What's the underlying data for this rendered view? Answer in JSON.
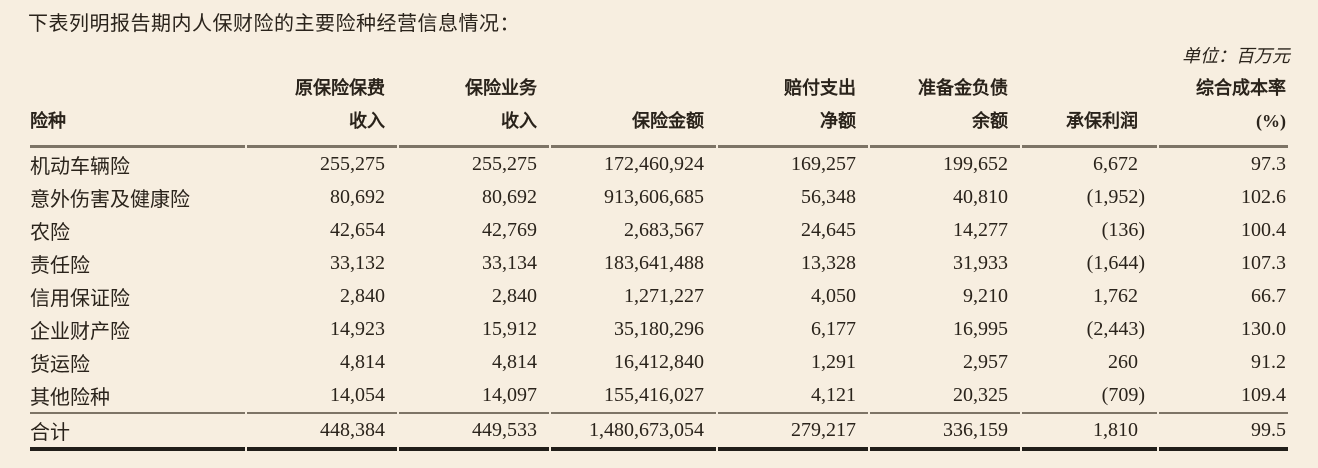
{
  "page": {
    "title": "下表列明报告期内人保财险的主要险种经营信息情况：",
    "unit_label": "单位：百万元"
  },
  "colors": {
    "background": "#f7eee0",
    "text": "#2a231b",
    "rule_light": "#7d7466",
    "rule_heavy": "#211e19"
  },
  "table": {
    "headers": [
      {
        "line1": "",
        "line2": "险种"
      },
      {
        "line1": "原保险保费",
        "line2": "收入"
      },
      {
        "line1": "保险业务",
        "line2": "收入"
      },
      {
        "line1": "",
        "line2": "保险金额"
      },
      {
        "line1": "赔付支出",
        "line2": "净额"
      },
      {
        "line1": "准备金负债",
        "line2": "余额"
      },
      {
        "line1": "",
        "line2": "承保利润"
      },
      {
        "line1": "综合成本率",
        "line2": "(%)"
      }
    ],
    "rows": [
      {
        "name": "机动车辆险",
        "values": [
          "255,275",
          "255,275",
          "172,460,924",
          "169,257",
          "199,652",
          "6,672",
          "97.3"
        ]
      },
      {
        "name": "意外伤害及健康险",
        "values": [
          "80,692",
          "80,692",
          "913,606,685",
          "56,348",
          "40,810",
          "(1,952)",
          "102.6"
        ]
      },
      {
        "name": "农险",
        "values": [
          "42,654",
          "42,769",
          "2,683,567",
          "24,645",
          "14,277",
          "(136)",
          "100.4"
        ]
      },
      {
        "name": "责任险",
        "values": [
          "33,132",
          "33,134",
          "183,641,488",
          "13,328",
          "31,933",
          "(1,644)",
          "107.3"
        ]
      },
      {
        "name": "信用保证险",
        "values": [
          "2,840",
          "2,840",
          "1,271,227",
          "4,050",
          "9,210",
          "1,762",
          "66.7"
        ]
      },
      {
        "name": "企业财产险",
        "values": [
          "14,923",
          "15,912",
          "35,180,296",
          "6,177",
          "16,995",
          "(2,443)",
          "130.0"
        ]
      },
      {
        "name": "货运险",
        "values": [
          "4,814",
          "4,814",
          "16,412,840",
          "1,291",
          "2,957",
          "260",
          "91.2"
        ]
      },
      {
        "name": "其他险种",
        "values": [
          "14,054",
          "14,097",
          "155,416,027",
          "4,121",
          "20,325",
          "(709)",
          "109.4"
        ]
      }
    ],
    "total": {
      "name": "合计",
      "values": [
        "448,384",
        "449,533",
        "1,480,673,054",
        "279,217",
        "336,159",
        "1,810",
        "99.5"
      ]
    }
  }
}
